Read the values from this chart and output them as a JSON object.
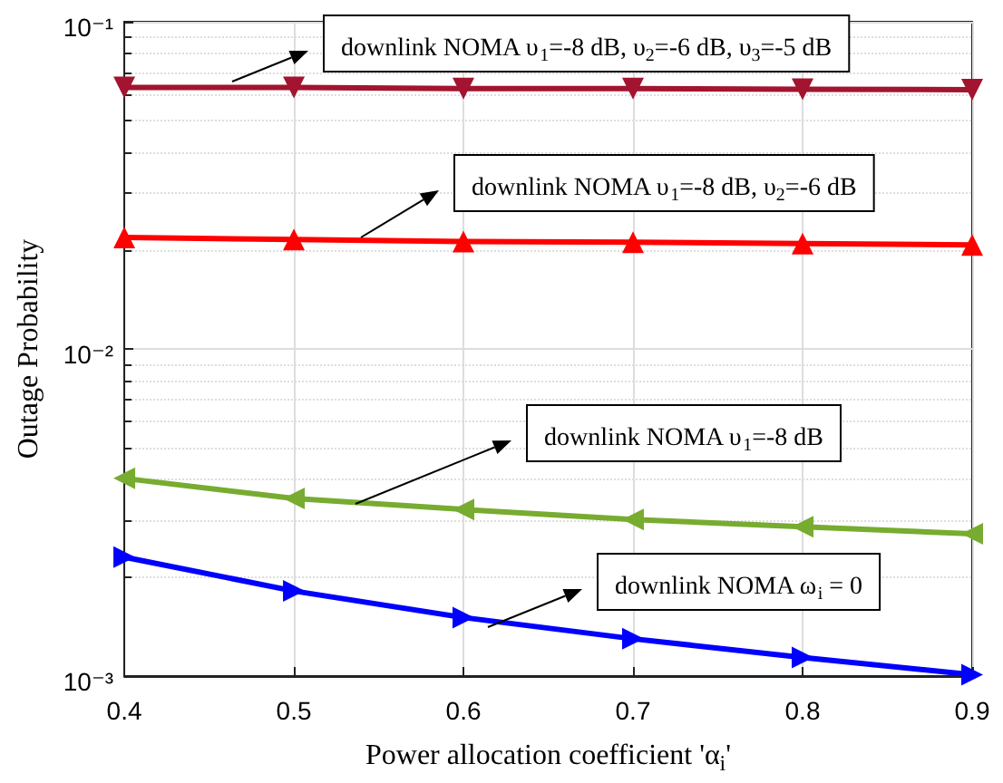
{
  "chart_data": {
    "type": "line",
    "xlabel": "Power allocation coefficient 'α$_{i}$'",
    "ylabel": "Outage Probability",
    "x": [
      0.4,
      0.5,
      0.6,
      0.7,
      0.8,
      0.9
    ],
    "series": [
      {
        "color": "#a2142f",
        "marker": "triangle",
        "values": [
          0.063,
          0.063,
          0.0625,
          0.0625,
          0.0622,
          0.062
        ]
      },
      {
        "color": "#ff0000",
        "marker": "triangle",
        "values": [
          0.0219,
          0.0216,
          0.0213,
          0.0212,
          0.021,
          0.0208
        ]
      },
      {
        "color": "#77ac30",
        "marker": "triangle",
        "values": [
          0.00402,
          0.00349,
          0.00323,
          0.00301,
          0.00286,
          0.00272
        ]
      },
      {
        "color": "#0000ff",
        "marker": "triangle",
        "values": [
          0.00231,
          0.00182,
          0.00151,
          0.0013,
          0.00114,
          0.00101
        ]
      }
    ],
    "xlim": [
      0.4,
      0.9
    ],
    "xticks": [
      0.4,
      0.5,
      0.6,
      0.7,
      0.8,
      0.9
    ],
    "ylim": [
      0.001,
      0.1
    ],
    "yticks": [
      {
        "value": 0.001,
        "label": "10⁻³"
      },
      {
        "value": 0.01,
        "label": "10⁻²"
      },
      {
        "value": 0.1,
        "label": "10⁻¹"
      }
    ],
    "log": "y",
    "grid": true,
    "line_style": "solid",
    "annotations": [
      "downlink NOMA υ$_{1}$=-8 dB, υ$_{2}$=-6 dB, υ$_{3}$=-5 dB",
      "downlink NOMA υ$_{1}$=-8 dB, υ$_{2}$=-6 dB",
      "downlink NOMA υ$_{1}$=-8 dB",
      "downlink NOMA ω$_{i}$ = 0"
    ]
  }
}
